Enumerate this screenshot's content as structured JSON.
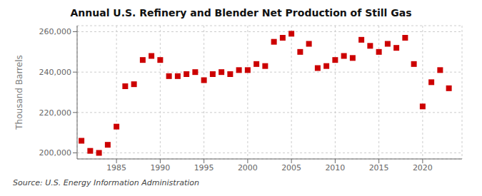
{
  "chart_data": {
    "type": "scatter",
    "title": "Annual U.S. Refinery and Blender Net Production of Still Gas",
    "y_label": "Thousand Barrels",
    "annotations": [
      "Source: U.S. Energy Information Administration"
    ],
    "x": [
      1981,
      1982,
      1983,
      1984,
      1985,
      1986,
      1987,
      1988,
      1989,
      1990,
      1991,
      1992,
      1993,
      1994,
      1995,
      1996,
      1997,
      1998,
      1999,
      2000,
      2001,
      2002,
      2003,
      2004,
      2005,
      2006,
      2007,
      2008,
      2009,
      2010,
      2011,
      2012,
      2013,
      2014,
      2015,
      2016,
      2017,
      2018,
      2019,
      2020,
      2021,
      2022,
      2023
    ],
    "values": [
      206000,
      201000,
      200000,
      204000,
      213000,
      233000,
      234000,
      246000,
      248000,
      246000,
      238000,
      238000,
      239000,
      240000,
      236000,
      239000,
      240000,
      239000,
      241000,
      241000,
      244000,
      243000,
      255000,
      257000,
      259000,
      250000,
      254000,
      242000,
      243000,
      246000,
      248000,
      247000,
      256000,
      253000,
      250000,
      254000,
      252000,
      257000,
      244000,
      223000,
      235000,
      241000,
      232000
    ],
    "color": "#cc0000",
    "marker": "square",
    "xlim": [
      1980.5,
      2024.5
    ],
    "xticks": [
      1985,
      1990,
      1995,
      2000,
      2005,
      2010,
      2015,
      2020
    ],
    "ylim": [
      197000,
      263000
    ],
    "yticks": [
      {
        "value": 200000,
        "label": "200,000"
      },
      {
        "value": 220000,
        "label": "220,000"
      },
      {
        "value": 240000,
        "label": "240,000"
      },
      {
        "value": 260000,
        "label": "260,000"
      }
    ],
    "grid": true
  }
}
